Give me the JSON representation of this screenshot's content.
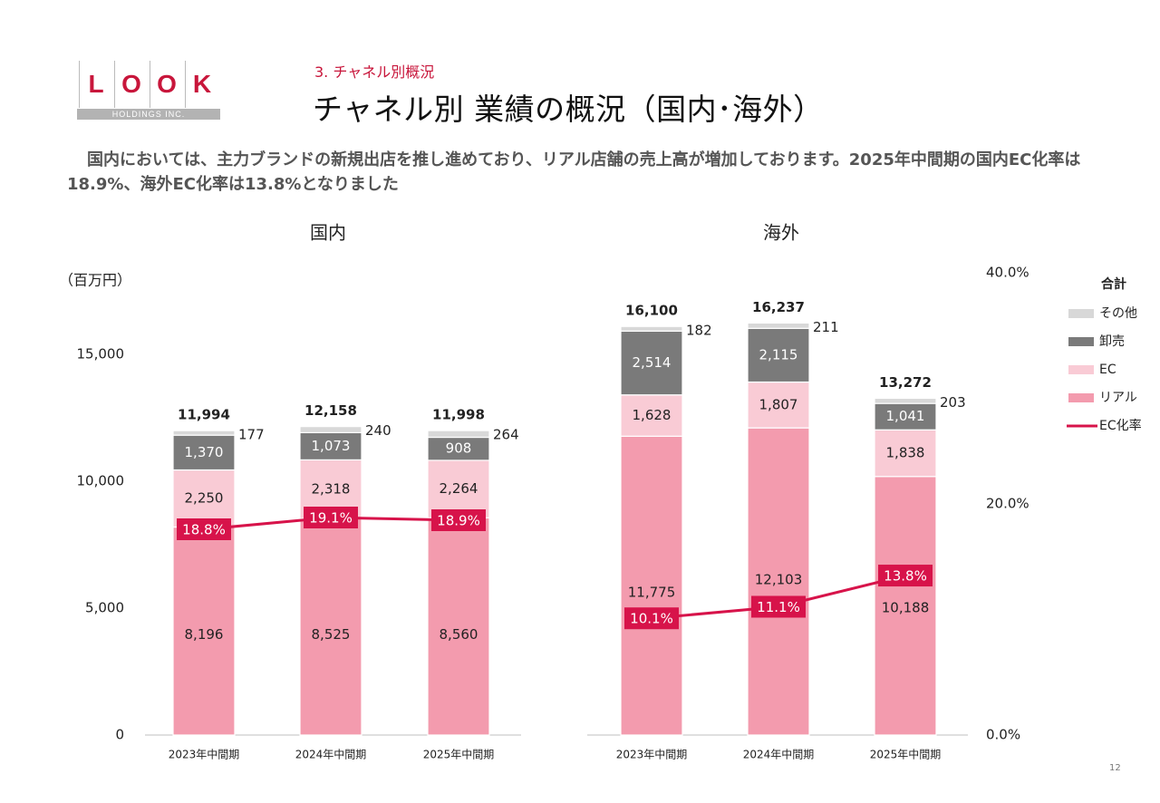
{
  "header": {
    "logo_letters": [
      "L",
      "O",
      "O",
      "K"
    ],
    "logo_sub": "HOLDINGS INC.",
    "section": "3. チャネル別概況",
    "title": "チャネル別 業績の概況（国内･海外）"
  },
  "summary": "国内においては、主力ブランドの新規出店を推し進めており、リアル店舗の売上高が増加しております。2025年中間期の国内EC化率は18.9%、海外EC化率は13.8%となりました",
  "page_number": "12",
  "colors": {
    "real": "#f39bae",
    "ec": "#f9cbd5",
    "wholesale": "#7a7a7a",
    "other": "#d8d8d8",
    "ec_rate": "#d7134a",
    "brand": "#c8163b"
  },
  "chart_data": [
    {
      "type": "bar",
      "stacked": true,
      "title": "国内",
      "unit_label": "（百万円）",
      "categories": [
        "2023年中間期",
        "2024年中間期",
        "2025年中間期"
      ],
      "y_ticks": [
        "0",
        "5,000",
        "10,000",
        "15,000"
      ],
      "ylim": [
        0,
        17500
      ],
      "series": [
        {
          "name": "リアル",
          "values": [
            8196,
            8525,
            8560
          ],
          "labels": [
            "8,196",
            "8,525",
            "8,560"
          ]
        },
        {
          "name": "EC",
          "values": [
            2250,
            2318,
            2264
          ],
          "labels": [
            "2,250",
            "2,318",
            "2,264"
          ]
        },
        {
          "name": "卸売",
          "values": [
            1370,
            1073,
            908
          ],
          "labels": [
            "1,370",
            "1,073",
            "908"
          ]
        },
        {
          "name": "その他",
          "values": [
            177,
            240,
            264
          ],
          "labels": [
            "177",
            "240",
            "264"
          ]
        }
      ],
      "totals": [
        "11,994",
        "12,158",
        "11,998"
      ],
      "ec_rate": {
        "name": "EC化率",
        "values": [
          18.8,
          19.1,
          18.9
        ],
        "labels": [
          "18.8%",
          "19.1%",
          "18.9%"
        ]
      }
    },
    {
      "type": "bar",
      "stacked": true,
      "title": "海外",
      "categories": [
        "2023年中間期",
        "2024年中間期",
        "2025年中間期"
      ],
      "ylim": [
        0,
        17500
      ],
      "y2_ticks": [
        "0.0%",
        "20.0%",
        "40.0%"
      ],
      "y2lim": [
        0,
        40
      ],
      "series": [
        {
          "name": "リアル",
          "values": [
            11775,
            12103,
            10188
          ],
          "labels": [
            "11,775",
            "12,103",
            "10,188"
          ]
        },
        {
          "name": "EC",
          "values": [
            1628,
            1807,
            1838
          ],
          "labels": [
            "1,628",
            "1,807",
            "1,838"
          ]
        },
        {
          "name": "卸売",
          "values": [
            2514,
            2115,
            1041
          ],
          "labels": [
            "2,514",
            "2,115",
            "1,041"
          ]
        },
        {
          "name": "その他",
          "values": [
            182,
            211,
            203
          ],
          "labels": [
            "182",
            "211",
            "203"
          ]
        }
      ],
      "totals": [
        "16,100",
        "16,237",
        "13,272"
      ],
      "ec_rate": {
        "name": "EC化率",
        "values": [
          10.1,
          11.1,
          13.8
        ],
        "labels": [
          "10.1%",
          "11.1%",
          "13.8%"
        ]
      }
    }
  ],
  "legend": {
    "title": "合計",
    "items": [
      "その他",
      "卸売",
      "EC",
      "リアル",
      "EC化率"
    ]
  }
}
